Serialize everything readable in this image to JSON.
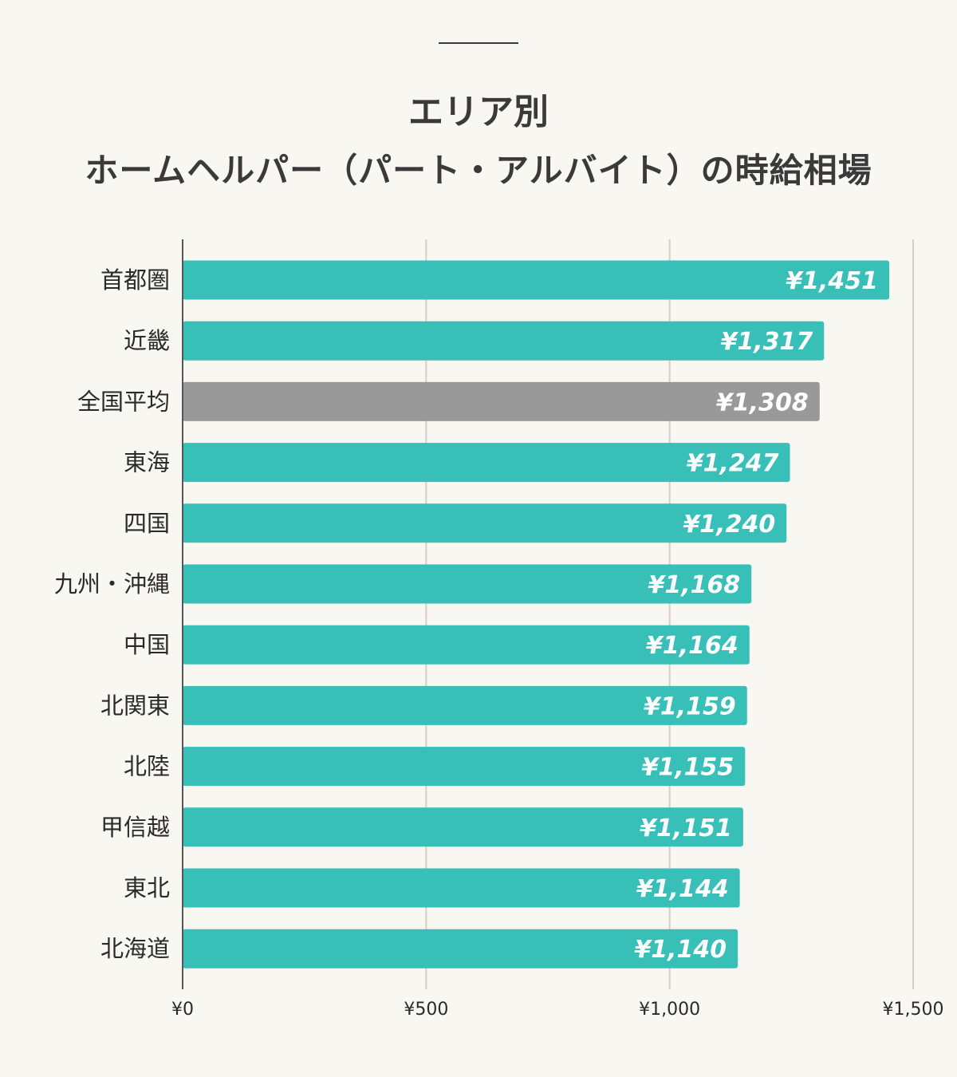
{
  "header": {
    "title_line1": "エリア別",
    "title_line2": "ホームヘルパー（パート・アルバイト）の時給相場"
  },
  "colors": {
    "background": "#f9f7f1",
    "bar": "#38bfb8",
    "bar_highlight": "#999999",
    "grid": "#d3d0c8",
    "axis": "#555555",
    "text": "#2a2a2a"
  },
  "chart_data": {
    "type": "bar",
    "orientation": "horizontal",
    "title": "エリア別 ホームヘルパー（パート・アルバイト）の時給相場",
    "categories": [
      "首都圏",
      "近畿",
      "全国平均",
      "東海",
      "四国",
      "九州・沖縄",
      "中国",
      "北関東",
      "北陸",
      "甲信越",
      "東北",
      "北海道"
    ],
    "values": [
      1451,
      1317,
      1308,
      1247,
      1240,
      1168,
      1164,
      1159,
      1155,
      1151,
      1144,
      1140
    ],
    "value_labels": [
      "¥1,451",
      "¥1,317",
      "¥1,308",
      "¥1,247",
      "¥1,240",
      "¥1,168",
      "¥1,164",
      "¥1,159",
      "¥1,155",
      "¥1,151",
      "¥1,144",
      "¥1,140"
    ],
    "highlight_category": "全国平均",
    "xlim": [
      0,
      1500
    ],
    "xticks": [
      0,
      500,
      1000,
      1500
    ],
    "xtick_labels": [
      "¥0",
      "¥500",
      "¥1,000",
      "¥1,500"
    ],
    "xlabel": "",
    "ylabel": "",
    "grid": true,
    "legend": "none"
  }
}
